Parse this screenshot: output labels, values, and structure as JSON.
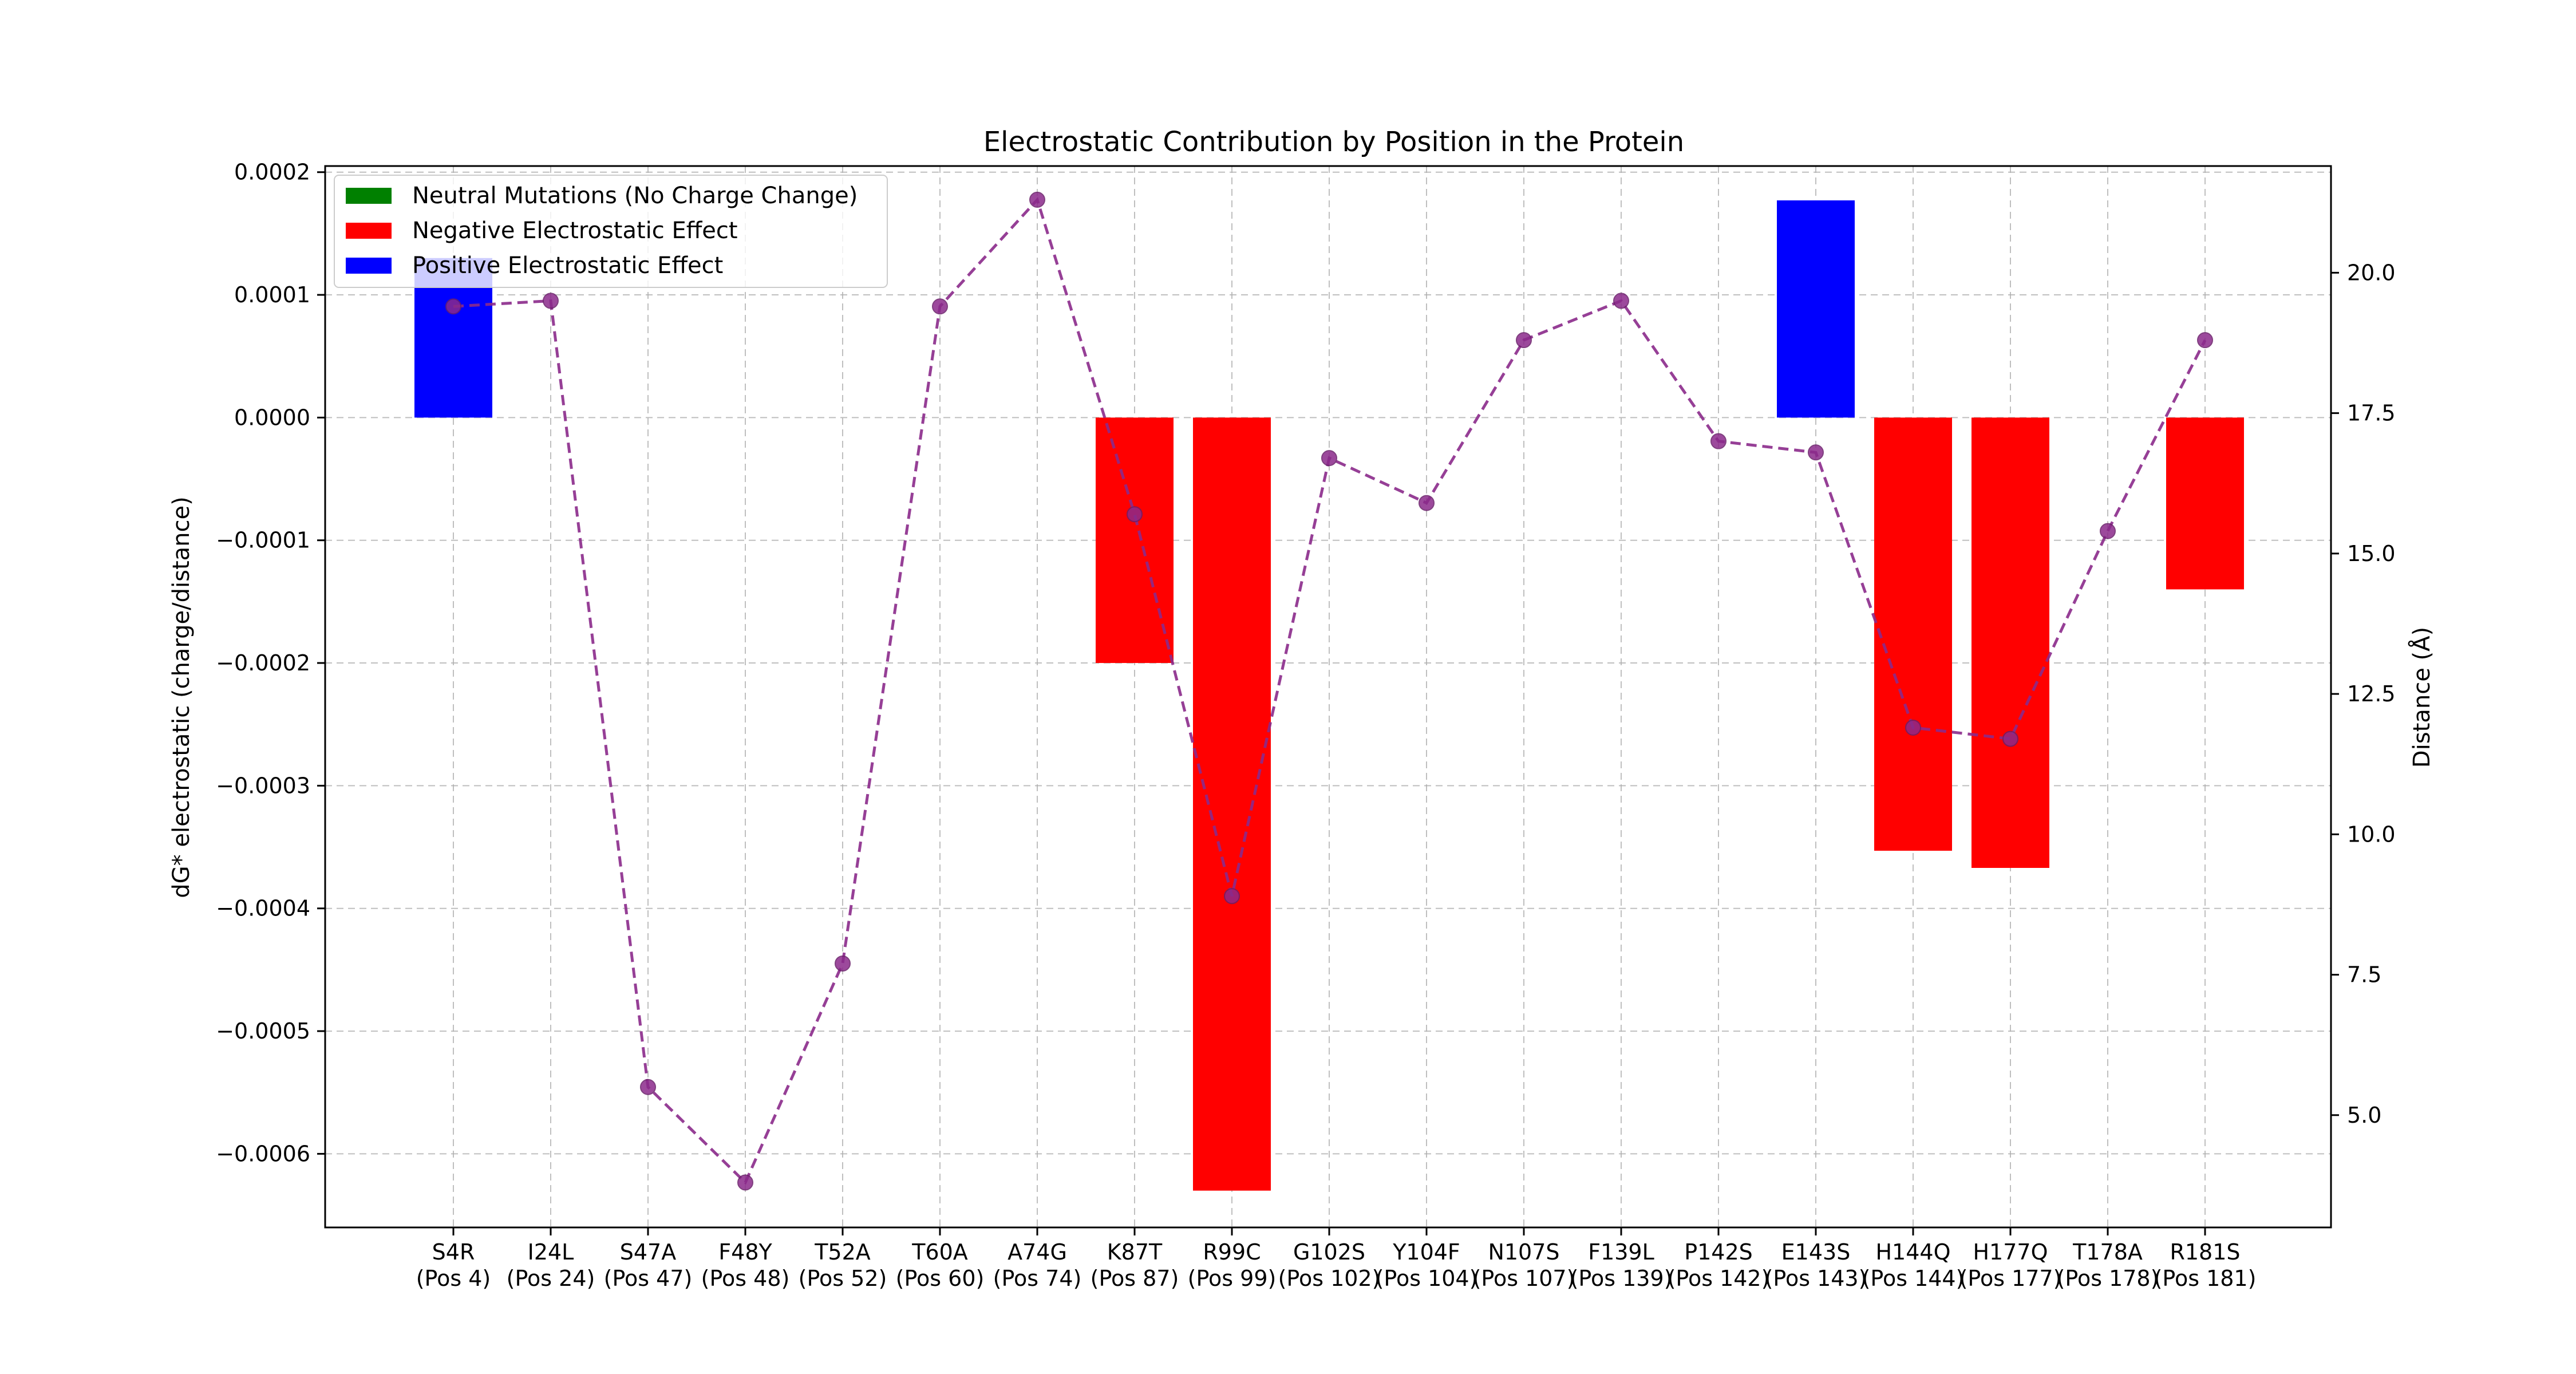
{
  "chart_data": {
    "type": "bar",
    "title": "Electrostatic Contribution by Position in the Protein",
    "ylabel": "dG* electrostatic (charge/distance)",
    "y2label": "Distance (Å)",
    "xlabel": "",
    "ylim": [
      -0.00066,
      0.000205
    ],
    "y2lim": [
      3.0,
      21.9
    ],
    "grid": true,
    "legend_position": "top-left",
    "categories": [
      {
        "name": "S4R",
        "pos": "(Pos 4)"
      },
      {
        "name": "I24L",
        "pos": "(Pos 24)"
      },
      {
        "name": "S47A",
        "pos": "(Pos 47)"
      },
      {
        "name": "F48Y",
        "pos": "(Pos 48)"
      },
      {
        "name": "T52A",
        "pos": "(Pos 52)"
      },
      {
        "name": "T60A",
        "pos": "(Pos 60)"
      },
      {
        "name": "A74G",
        "pos": "(Pos 74)"
      },
      {
        "name": "K87T",
        "pos": "(Pos 87)"
      },
      {
        "name": "R99C",
        "pos": "(Pos 99)"
      },
      {
        "name": "G102S",
        "pos": "(Pos 102)"
      },
      {
        "name": "Y104F",
        "pos": "(Pos 104)"
      },
      {
        "name": "N107S",
        "pos": "(Pos 107)"
      },
      {
        "name": "F139L",
        "pos": "(Pos 139)"
      },
      {
        "name": "P142S",
        "pos": "(Pos 142)"
      },
      {
        "name": "E143S",
        "pos": "(Pos 143)"
      },
      {
        "name": "H144Q",
        "pos": "(Pos 144)"
      },
      {
        "name": "H177Q",
        "pos": "(Pos 177)"
      },
      {
        "name": "T178A",
        "pos": "(Pos 178)"
      },
      {
        "name": "R181S",
        "pos": "(Pos 181)"
      }
    ],
    "bar_values": [
      0.00013,
      0,
      0,
      0,
      0,
      0,
      0,
      -0.0002,
      -0.00063,
      0,
      0,
      0,
      0,
      0,
      0.000177,
      -0.000353,
      -0.000367,
      0,
      -0.00014
    ],
    "bar_effects": [
      "positive",
      "neutral",
      "neutral",
      "neutral",
      "neutral",
      "neutral",
      "neutral",
      "negative",
      "negative",
      "neutral",
      "neutral",
      "neutral",
      "neutral",
      "neutral",
      "positive",
      "negative",
      "negative",
      "neutral",
      "negative"
    ],
    "distances": [
      19.4,
      19.5,
      5.5,
      3.8,
      7.7,
      19.4,
      21.3,
      15.7,
      8.9,
      16.7,
      15.9,
      18.8,
      19.5,
      17.0,
      16.8,
      11.9,
      11.7,
      15.4,
      18.8
    ],
    "yticks": [
      "0.0002",
      "0.0001",
      "0.0000",
      "−0.0001",
      "−0.0002",
      "−0.0003",
      "−0.0004",
      "−0.0005",
      "−0.0006"
    ],
    "ytick_values": [
      0.0002,
      0.0001,
      0,
      -0.0001,
      -0.0002,
      -0.0003,
      -0.0004,
      -0.0005,
      -0.0006
    ],
    "y2ticks": [
      "20.0",
      "17.5",
      "15.0",
      "12.5",
      "10.0",
      "7.5",
      "5.0"
    ],
    "y2tick_values": [
      20.0,
      17.5,
      15.0,
      12.5,
      10.0,
      7.5,
      5.0
    ],
    "legend": [
      {
        "label": "Neutral Mutations (No Charge Change)",
        "color": "#008000"
      },
      {
        "label": "Negative Electrostatic Effect",
        "color": "#ff0000"
      },
      {
        "label": "Positive Electrostatic Effect",
        "color": "#0000ff"
      }
    ],
    "colors": {
      "positive": "#0000ff",
      "negative": "#ff0000",
      "neutral": "#008000",
      "line": "#8b2a8b"
    }
  }
}
